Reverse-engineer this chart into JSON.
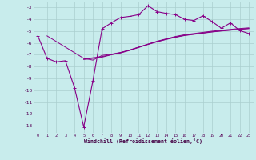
{
  "xlabel": "Windchill (Refroidissement éolien,°C)",
  "background_color": "#c8ecec",
  "grid_color": "#aacfcf",
  "line_color": "#880088",
  "x_ticks": [
    0,
    1,
    2,
    3,
    4,
    5,
    6,
    7,
    8,
    9,
    10,
    11,
    12,
    13,
    14,
    15,
    16,
    17,
    18,
    19,
    20,
    21,
    22,
    23
  ],
  "y_ticks": [
    -13,
    -12,
    -11,
    -10,
    -9,
    -8,
    -7,
    -6,
    -5,
    -4,
    -3
  ],
  "ylim": [
    -13.6,
    -2.5
  ],
  "xlim": [
    -0.5,
    23.5
  ],
  "series": [
    [
      null,
      -5.4,
      null,
      null,
      null,
      -7.3,
      -7.45,
      -7.05,
      -6.95,
      -6.8,
      -6.6,
      -6.35,
      -6.1,
      -5.85,
      -5.65,
      -5.45,
      -5.3,
      -5.2,
      -5.1,
      -5.0,
      -4.92,
      -4.85,
      -4.78,
      -4.72
    ],
    [
      null,
      null,
      null,
      null,
      null,
      -7.35,
      -7.25,
      -7.15,
      -6.98,
      -6.82,
      -6.6,
      -6.35,
      -6.1,
      -5.88,
      -5.68,
      -5.5,
      -5.35,
      -5.25,
      -5.15,
      -5.05,
      -4.97,
      -4.9,
      -4.83,
      -4.77
    ],
    [
      null,
      null,
      null,
      null,
      null,
      -7.4,
      -7.3,
      -7.2,
      -7.0,
      -6.85,
      -6.63,
      -6.38,
      -6.13,
      -5.9,
      -5.7,
      -5.52,
      -5.37,
      -5.27,
      -5.17,
      -5.07,
      -4.99,
      -4.92,
      -4.85,
      -4.79
    ],
    [
      -5.4,
      -7.3,
      -7.6,
      -7.5,
      -9.8,
      -13.1,
      -9.2,
      -4.8,
      -4.3,
      -3.85,
      -3.75,
      -3.6,
      -2.85,
      -3.35,
      -3.5,
      -3.6,
      -4.0,
      -4.1,
      -3.7,
      -4.2,
      -4.75,
      -4.3,
      -4.95,
      -5.2
    ]
  ]
}
